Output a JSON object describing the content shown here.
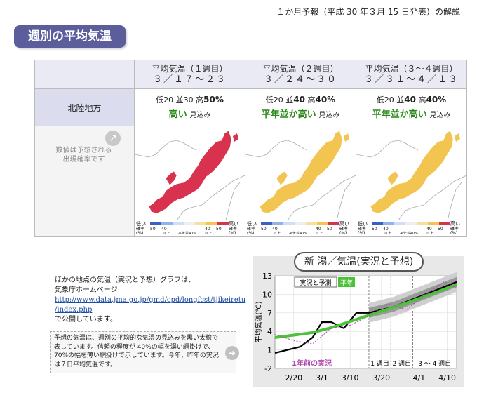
{
  "header": "１か月予報（平成 30 年３月 15 日発表）の解説",
  "section_title": "週別の平均気温",
  "columns": [
    {
      "title": "平均気温（１週目）",
      "dates": "３／１７～２３"
    },
    {
      "title": "平均気温（２週目）",
      "dates": "３／２４～３０"
    },
    {
      "title": "平均気温（３～４週目）",
      "dates": "３／３１～４／１３"
    }
  ],
  "region": "北陸地方",
  "cells": [
    {
      "low_label": "低",
      "low": "20",
      "mid_label": "並",
      "mid": "30",
      "high_label": "高",
      "high": "50%",
      "category": "高い",
      "suffix": "見込み"
    },
    {
      "low_label": "低",
      "low": "20",
      "mid_label": "並",
      "mid": "40",
      "high_label": "高",
      "high": "40%",
      "category": "平年並か高い",
      "suffix": "見込み"
    },
    {
      "low_label": "低",
      "low": "20",
      "mid_label": "並",
      "mid": "40",
      "high_label": "高",
      "high": "40%",
      "category": "平年並か高い",
      "suffix": "見込み"
    }
  ],
  "maps": [
    {
      "caption": "平均気温（１週目）",
      "color": "#d8324e"
    },
    {
      "caption": "平均気温（２週目）",
      "color": "#f2c450"
    },
    {
      "caption": "平均気温（3～4週目）",
      "color": "#f2c450"
    }
  ],
  "map_legend": {
    "low": "低い",
    "high": "高い",
    "prob": "確率",
    "pct": "(%)",
    "v50": "50",
    "v40": "40",
    "ijo": "以上",
    "mid": "平年並40%"
  },
  "note1": "数値は予想される\n出現確率です",
  "left_text": {
    "line1": "ほかの地点の気温（実況と予想）グラフは、",
    "line2": "気象庁ホームページ",
    "url1": "http://www.data.jma.go.jp/gmd/cpd/longfcst/tjikeiretu",
    "url2": "/index.php",
    "line3": "で公開しています。"
  },
  "note2": "予想の気温は、週別の平均的な気温の見込みを黒い太線で表しています。信頼の程度が 40%の幅を濃い網掛けで、70%の幅を薄い網掛けで示しています。今年、昨年の実況は７日平均気温です。",
  "graph": {
    "title": "新 潟／気温(実況と予想)",
    "ylabel": "平均気温(℃)",
    "legend_obs": "実況と予測",
    "legend_norm": "平年",
    "last_year": "1年前の実況",
    "week1": "1 週目",
    "week2": "2 週目",
    "week34": "3 ～ 4 週目",
    "yticks": [
      "13",
      "10",
      "7",
      "4",
      "1",
      "-2"
    ],
    "xticks": [
      "2/20",
      "3/1",
      "3/10",
      "3/20",
      "4/1",
      "4/10"
    ]
  },
  "chart_data": {
    "type": "line",
    "title": "新 潟／気温(実況と予想)",
    "ylabel": "平均気温(℃)",
    "ylim": [
      -2,
      13
    ],
    "xtick_labels": [
      "2/20",
      "3/1",
      "3/10",
      "3/20",
      "4/1",
      "4/10"
    ],
    "series": [
      {
        "name": "実況と予測",
        "color": "#000000",
        "x": [
          "2/14",
          "2/18",
          "2/22",
          "2/26",
          "3/1",
          "3/4",
          "3/8",
          "3/12",
          "3/16",
          "3/20",
          "3/24",
          "3/28",
          "4/1",
          "4/5",
          "4/9",
          "4/13"
        ],
        "values": [
          0.5,
          1.0,
          1.5,
          3.0,
          5.5,
          5.5,
          4.5,
          7.0,
          7.0,
          7.5,
          8.0,
          8.8,
          9.6,
          10.4,
          11.2,
          12.0
        ]
      },
      {
        "name": "平年",
        "color": "#4cc23a",
        "x": [
          "2/14",
          "2/20",
          "2/26",
          "3/4",
          "3/10",
          "3/16",
          "3/22",
          "3/28",
          "4/3",
          "4/9",
          "4/13"
        ],
        "values": [
          3.0,
          3.4,
          3.8,
          4.6,
          5.6,
          6.6,
          7.6,
          8.6,
          9.7,
          10.8,
          11.6
        ]
      },
      {
        "name": "1年前の実況",
        "color": "#b04ab0",
        "x": [
          "2/14",
          "2/20",
          "2/26",
          "3/4",
          "3/10",
          "3/16",
          "3/22",
          "3/28",
          "4/3",
          "4/9",
          "4/13"
        ],
        "values": [
          3.5,
          2.5,
          2.0,
          4.5,
          5.0,
          6.5,
          8.5,
          7.5,
          10.0,
          12.0,
          11.0
        ]
      }
    ]
  }
}
